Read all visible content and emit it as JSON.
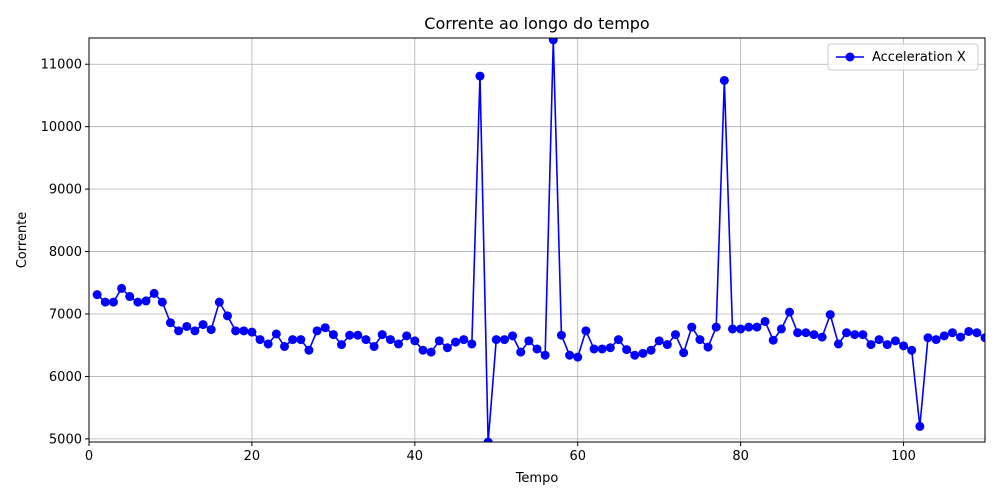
{
  "chart_data": {
    "type": "line",
    "title": "Corrente ao longo do tempo",
    "xlabel": "Tempo",
    "ylabel": "Corrente",
    "xlim": [
      0,
      110
    ],
    "ylim": [
      4950,
      11420
    ],
    "xticks": [
      0,
      20,
      40,
      60,
      80,
      100
    ],
    "yticks": [
      5000,
      6000,
      7000,
      8000,
      9000,
      10000,
      11000
    ],
    "grid": true,
    "legend_position": "top-right",
    "color": "#0000ff",
    "series": [
      {
        "name": "Acceleration X",
        "x": [
          1,
          2,
          3,
          4,
          5,
          6,
          7,
          8,
          9,
          10,
          11,
          12,
          13,
          14,
          15,
          16,
          17,
          18,
          19,
          20,
          21,
          22,
          23,
          24,
          25,
          26,
          27,
          28,
          29,
          30,
          31,
          32,
          33,
          34,
          35,
          36,
          37,
          38,
          39,
          40,
          41,
          42,
          43,
          44,
          45,
          46,
          47,
          48,
          49,
          50,
          51,
          52,
          53,
          54,
          55,
          56,
          57,
          58,
          59,
          60,
          61,
          62,
          63,
          64,
          65,
          66,
          67,
          68,
          69,
          70,
          71,
          72,
          73,
          74,
          75,
          76,
          77,
          78,
          79,
          80,
          81,
          82,
          83,
          84,
          85,
          86,
          87,
          88,
          89,
          90,
          91,
          92,
          93,
          94,
          95,
          96,
          97,
          98,
          99,
          100,
          101,
          102,
          103,
          104,
          105,
          106,
          107,
          108,
          109,
          110
        ],
        "values": [
          7310,
          7190,
          7190,
          7410,
          7280,
          7190,
          7210,
          7330,
          7190,
          6860,
          6730,
          6800,
          6730,
          6830,
          6750,
          7190,
          6970,
          6730,
          6730,
          6710,
          6590,
          6520,
          6680,
          6480,
          6590,
          6590,
          6420,
          6730,
          6780,
          6670,
          6510,
          6660,
          6660,
          6590,
          6480,
          6670,
          6590,
          6520,
          6650,
          6570,
          6420,
          6390,
          6570,
          6460,
          6550,
          6590,
          6520,
          10810,
          4950,
          6590,
          6590,
          6650,
          6390,
          6570,
          6440,
          6340,
          11390,
          6660,
          6340,
          6310,
          6730,
          6440,
          6440,
          6460,
          6590,
          6430,
          6340,
          6370,
          6420,
          6570,
          6510,
          6670,
          6380,
          6790,
          6590,
          6470,
          6790,
          10740,
          6760,
          6760,
          6790,
          6790,
          6880,
          6580,
          6760,
          7030,
          6700,
          6700,
          6670,
          6630,
          6990,
          6520,
          6700,
          6670,
          6670,
          6510,
          6590,
          6510,
          6570,
          6490,
          6420,
          5200,
          6620,
          6590,
          6650,
          6700,
          6630,
          6720,
          6700,
          6620
        ]
      }
    ]
  }
}
